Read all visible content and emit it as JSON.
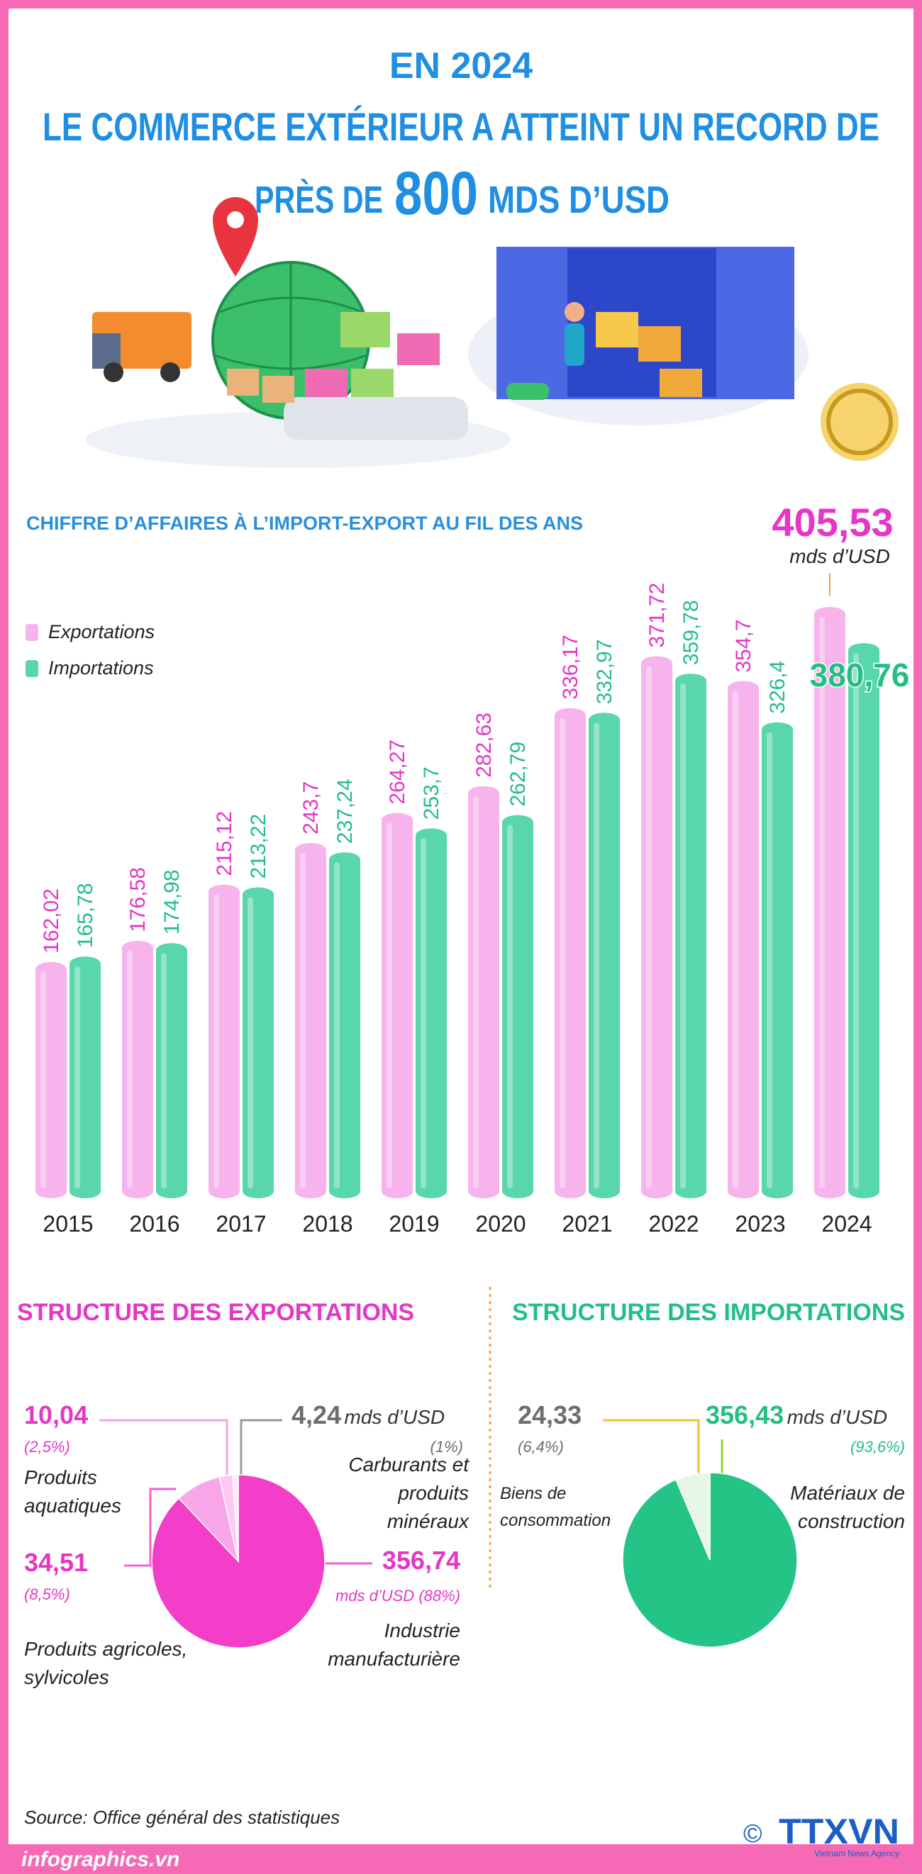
{
  "header": {
    "line1": "EN 2024",
    "line2": "LE COMMERCE EXTÉRIEUR A ATTEINT UN RECORD DE",
    "line3_start": "PRÈS DE",
    "line3_number": "800",
    "line3_end": "MDS D’USD"
  },
  "chart_data": [
    {
      "type": "bar",
      "title": "CHIFFRE D’AFFAIRES À L’IMPORT-EXPORT AU FIL DES ANS",
      "unit": "mds d’USD",
      "categories": [
        "2015",
        "2016",
        "2017",
        "2018",
        "2019",
        "2020",
        "2021",
        "2022",
        "2023",
        "2024"
      ],
      "series": [
        {
          "name": "Exportations",
          "color": "#f7b3ec",
          "values": [
            162.02,
            176.58,
            215.12,
            243.7,
            264.27,
            282.63,
            336.17,
            371.72,
            354.7,
            405.53
          ],
          "value_labels": [
            "162,02",
            "176,58",
            "215,12",
            "243,7",
            "264,27",
            "282,63",
            "336,17",
            "371,72",
            "354,7",
            "405,53"
          ]
        },
        {
          "name": "Importations",
          "color": "#5ad6ad",
          "values": [
            165.78,
            174.98,
            213.22,
            237.24,
            253.7,
            262.79,
            332.97,
            359.78,
            326.4,
            380.76
          ],
          "value_labels": [
            "165,78",
            "174,98",
            "213,22",
            "237,24",
            "253,7",
            "262,79",
            "332,97",
            "359,78",
            "326,4",
            "380,76"
          ]
        }
      ],
      "legend": "upper left"
    },
    {
      "type": "pie",
      "title": "STRUCTURE DES EXPORTATIONS",
      "unit": "mds d’USD",
      "categories": [
        "Industrie manufacturière",
        "Produits agricoles, sylvicoles",
        "Produits aquatiques",
        "Carburants et produits minéraux"
      ],
      "values": [
        356.74,
        34.51,
        10.04,
        4.24
      ],
      "value_labels": [
        "356,74",
        "34,51",
        "10,04",
        "4,24"
      ],
      "shares": [
        88,
        8.5,
        2.5,
        1
      ],
      "share_labels": [
        "(88%)",
        "(8,5%)",
        "(2,5%)",
        "(1%)"
      ],
      "colors": [
        "#f23ec8",
        "#f8a6e8",
        "#fbc9f1",
        "#fdeaf8"
      ]
    },
    {
      "type": "pie",
      "title": "STRUCTURE DES IMPORTATIONS",
      "unit": "mds d’USD",
      "categories": [
        "Matériaux de construction",
        "Biens de consommation"
      ],
      "values": [
        356.43,
        24.33
      ],
      "value_labels": [
        "356,43",
        "24,33"
      ],
      "shares": [
        93.6,
        6.4
      ],
      "share_labels": [
        "(93,6%)",
        "(6,4%)"
      ],
      "colors": [
        "#24c386",
        "#e6f7e6"
      ]
    }
  ],
  "footer": {
    "source": "Source: Office général des statistiques",
    "site": "infographics.vn",
    "copyright": "©",
    "logo": "TTXVN",
    "logo_subtitle": "Vietnam News Agency"
  }
}
